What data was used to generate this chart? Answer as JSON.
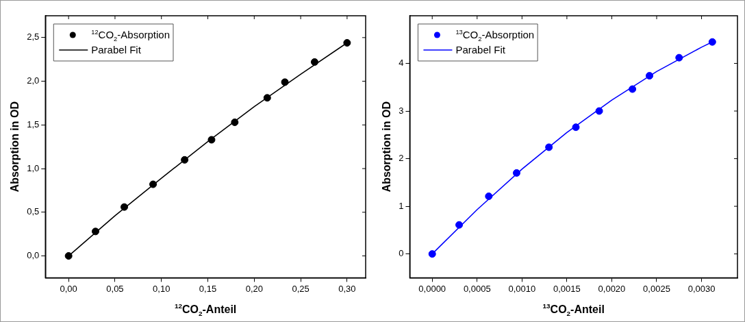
{
  "chart_data": [
    {
      "type": "scatter",
      "xlabel": "$^{12}$CO$_{2}$-Anteil",
      "ylabel": "Absorption in OD",
      "legend": "top left",
      "xlim": [
        -0.025,
        0.32
      ],
      "ylim": [
        -0.25,
        2.75
      ],
      "xticks": [
        {
          "value": 0,
          "label": "0,00"
        },
        {
          "value": 0.05,
          "label": "0,05"
        },
        {
          "value": 0.1,
          "label": "0,10"
        },
        {
          "value": 0.15,
          "label": "0,15"
        },
        {
          "value": 0.2,
          "label": "0,20"
        },
        {
          "value": 0.25,
          "label": "0,25"
        },
        {
          "value": 0.3,
          "label": "0,30"
        }
      ],
      "yticks": [
        {
          "value": 0,
          "label": "0,0"
        },
        {
          "value": 0.5,
          "label": "0,5"
        },
        {
          "value": 1,
          "label": "1,0"
        },
        {
          "value": 1.5,
          "label": "1,5"
        },
        {
          "value": 2,
          "label": "2,0"
        },
        {
          "value": 2.5,
          "label": "2,5"
        }
      ],
      "series": [
        {
          "name": "$^{12}$CO$_{2}$-Absorption",
          "marker": "circle",
          "color": "#000000",
          "x": [
            0,
            0.029,
            0.06,
            0.091,
            0.125,
            0.154,
            0.179,
            0.214,
            0.233,
            0.265,
            0.3
          ],
          "values": [
            0,
            0.28,
            0.56,
            0.82,
            1.1,
            1.33,
            1.53,
            1.81,
            1.99,
            2.22,
            2.44
          ]
        },
        {
          "name": "Parabel Fit",
          "type": "line",
          "color": "#000000",
          "x": [
            0,
            0.05,
            0.1,
            0.15,
            0.2,
            0.25,
            0.3
          ],
          "values": [
            0,
            0.46,
            0.89,
            1.31,
            1.71,
            2.08,
            2.44
          ]
        }
      ]
    },
    {
      "type": "scatter",
      "xlabel": "$^{13}$CO$_{2}$-Anteil",
      "ylabel": "Absorption in OD",
      "legend": "top left",
      "xlim": [
        -0.00025,
        0.0034
      ],
      "ylim": [
        -0.5,
        5
      ],
      "xticks": [
        {
          "value": 0,
          "label": "0,0000"
        },
        {
          "value": 0.0005,
          "label": "0,0005"
        },
        {
          "value": 0.001,
          "label": "0,0010"
        },
        {
          "value": 0.0015,
          "label": "0,0015"
        },
        {
          "value": 0.002,
          "label": "0,0020"
        },
        {
          "value": 0.0025,
          "label": "0,0025"
        },
        {
          "value": 0.003,
          "label": "0,0030"
        }
      ],
      "yticks": [
        0,
        1,
        2,
        3,
        4
      ],
      "series": [
        {
          "name": "$^{13}$CO$_{2}$-Absorption",
          "marker": "circle",
          "color": "#0000ff",
          "x": [
            0,
            0.0003,
            0.00063,
            0.00094,
            0.0013,
            0.0016,
            0.00186,
            0.00223,
            0.00242,
            0.00275,
            0.00312
          ],
          "values": [
            0,
            0.61,
            1.21,
            1.7,
            2.24,
            2.66,
            3.0,
            3.46,
            3.74,
            4.12,
            4.45
          ]
        },
        {
          "name": "Parabel Fit",
          "type": "line",
          "color": "#0000ff",
          "x": [
            0,
            0.0005,
            0.001,
            0.0015,
            0.002,
            0.0025,
            0.003,
            0.00312
          ],
          "values": [
            0,
            0.93,
            1.78,
            2.55,
            3.23,
            3.83,
            4.34,
            4.45
          ]
        }
      ]
    }
  ]
}
